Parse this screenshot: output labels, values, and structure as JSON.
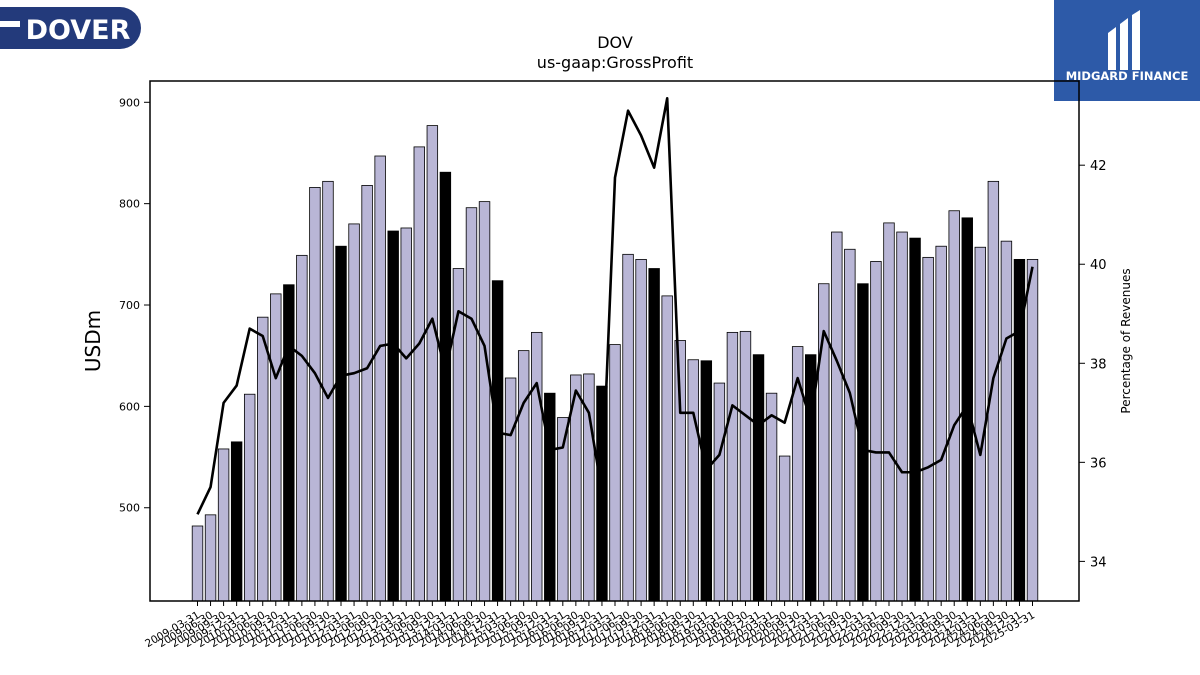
{
  "logos": {
    "left_text": "DOVER",
    "left_color": "#233a7b",
    "right_text": "MIDGARD FINANCE",
    "right_color": "#2d5aa8"
  },
  "chart_data": {
    "type": "bar",
    "title": "DOV",
    "subtitle": "us-gaap:GrossProfit",
    "ylabel": "USDm",
    "y2label": "Percentage of Revenues",
    "ylim": [
      408,
      921
    ],
    "y2lim": [
      33.2,
      43.7
    ],
    "yticks": [
      500,
      600,
      700,
      800,
      900
    ],
    "y2ticks": [
      34,
      36,
      38,
      40,
      42
    ],
    "bar_color": "#b9b6d6",
    "highlight_color": "#000000",
    "line_color": "#000000",
    "tick_labels": [
      "2009-03-31",
      "2009-06-30",
      "2009-09-30",
      "2009-12-31",
      "2010-03-31",
      "2010-06-30",
      "2010-09-30",
      "2010-12-31",
      "2011-03-31",
      "2011-06-30",
      "2011-09-30",
      "2011-12-31",
      "2012-03-31",
      "2012-06-30",
      "2012-09-30",
      "2012-12-31",
      "2013-03-31",
      "2013-06-30",
      "2013-09-30",
      "2013-12-31",
      "2014-03-31",
      "2014-06-30",
      "2014-09-30",
      "2014-12-31",
      "2015-03-31",
      "2015-06-30",
      "2015-09-30",
      "2015-12-31",
      "2016-03-31",
      "2016-06-30",
      "2016-09-30",
      "2016-12-31",
      "2017-03-31",
      "2017-06-30",
      "2017-09-30",
      "2017-12-31",
      "2018-03-31",
      "2018-06-30",
      "2018-09-30",
      "2018-12-31",
      "2019-03-31",
      "2019-06-30",
      "2019-09-30",
      "2019-12-31",
      "2020-03-31",
      "2020-06-30",
      "2020-09-30",
      "2020-12-31",
      "2021-03-31",
      "2021-06-30",
      "2021-09-30",
      "2021-12-31",
      "2022-03-31",
      "2022-06-30",
      "2022-09-30",
      "2022-12-31",
      "2023-03-31",
      "2023-06-30",
      "2023-09-30",
      "2023-12-31",
      "2024-03-31",
      "2024-06-30",
      "2024-09-30",
      "2024-12-31",
      "2025-03-31"
    ],
    "series": [
      {
        "type": "bar",
        "values": [
          482,
          493,
          558,
          565,
          612,
          688,
          711,
          720,
          749,
          816,
          822,
          758,
          780,
          818,
          847,
          773,
          776,
          856,
          877,
          831,
          736,
          796,
          802,
          724,
          628,
          655,
          673,
          613,
          589,
          631,
          632,
          620,
          661,
          750,
          745,
          736,
          709,
          665,
          646,
          645,
          623,
          673,
          674,
          651,
          613,
          551,
          659,
          651,
          721,
          772,
          755,
          721,
          743,
          781,
          772,
          766,
          747,
          758,
          793,
          786,
          757,
          822,
          763,
          745,
          745
        ],
        "highlight": [
          false,
          false,
          false,
          true,
          false,
          false,
          false,
          true,
          false,
          false,
          false,
          true,
          false,
          false,
          false,
          true,
          false,
          false,
          false,
          true,
          false,
          false,
          false,
          true,
          false,
          false,
          false,
          true,
          false,
          false,
          false,
          true,
          false,
          false,
          false,
          true,
          false,
          false,
          false,
          true,
          false,
          false,
          false,
          true,
          false,
          false,
          false,
          true,
          false,
          false,
          false,
          true,
          false,
          false,
          false,
          true,
          false,
          false,
          false,
          true,
          false,
          false,
          false,
          true,
          false
        ]
      },
      {
        "type": "line",
        "axis": "right",
        "values": [
          34.95,
          35.5,
          37.2,
          37.55,
          38.7,
          38.55,
          37.7,
          38.35,
          38.15,
          37.8,
          37.3,
          37.75,
          37.8,
          37.9,
          38.35,
          38.4,
          38.1,
          38.4,
          38.9,
          37.85,
          39.05,
          38.9,
          38.35,
          36.6,
          36.55,
          37.2,
          37.6,
          36.25,
          36.3,
          37.45,
          37.0,
          35.4,
          41.75,
          43.1,
          42.6,
          41.95,
          43.35,
          37.0,
          37.0,
          35.85,
          36.15,
          37.15,
          36.95,
          36.75,
          36.95,
          36.8,
          37.7,
          36.85,
          38.65,
          38.05,
          37.4,
          36.25,
          36.2,
          36.2,
          35.8,
          35.8,
          35.9,
          36.05,
          36.75,
          37.15,
          36.15,
          37.7,
          38.5,
          38.65,
          39.95
        ]
      }
    ]
  }
}
